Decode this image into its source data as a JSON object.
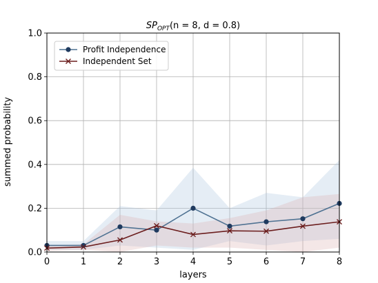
{
  "chart_data": {
    "type": "line",
    "title": "SP_OPT(n = 8, d = 0.8)",
    "title_parts": {
      "prefix": "SP",
      "subscript": "OPT",
      "args": "(n = 8, d = 0.8)"
    },
    "xlabel": "layers",
    "ylabel": "summed probability",
    "x": [
      0,
      1,
      2,
      3,
      4,
      5,
      6,
      7,
      8
    ],
    "xlim": [
      0,
      8
    ],
    "ylim": [
      0.0,
      1.0
    ],
    "x_ticks": [
      "0",
      "1",
      "2",
      "3",
      "4",
      "5",
      "6",
      "7",
      "8"
    ],
    "y_ticks": [
      "0.0",
      "0.2",
      "0.4",
      "0.6",
      "0.8",
      "1.0"
    ],
    "grid": true,
    "legend_position": "top-left",
    "series": [
      {
        "name": "Profit Independence",
        "color": "#4f7292",
        "marker": "circle",
        "values": [
          0.03,
          0.03,
          0.115,
          0.1,
          0.2,
          0.118,
          0.138,
          0.152,
          0.222
        ],
        "band_upper": [
          0.05,
          0.05,
          0.21,
          0.19,
          0.385,
          0.2,
          0.27,
          0.25,
          0.42
        ],
        "band_lower": [
          0.01,
          0.01,
          0.03,
          0.02,
          0.01,
          0.05,
          0.03,
          0.05,
          0.06
        ],
        "band_color": "#a9c3de"
      },
      {
        "name": "Independent Set",
        "color": "#6b1d1d",
        "marker": "x",
        "values": [
          0.018,
          0.023,
          0.055,
          0.12,
          0.08,
          0.097,
          0.095,
          0.118,
          0.138
        ],
        "band_upper": [
          0.03,
          0.035,
          0.17,
          0.14,
          0.13,
          0.155,
          0.19,
          0.25,
          0.265
        ],
        "band_lower": [
          0.005,
          0.01,
          0.0,
          0.03,
          0.02,
          0.02,
          0.01,
          0.0,
          0.02
        ],
        "band_color": "#dcb0b0"
      }
    ]
  }
}
